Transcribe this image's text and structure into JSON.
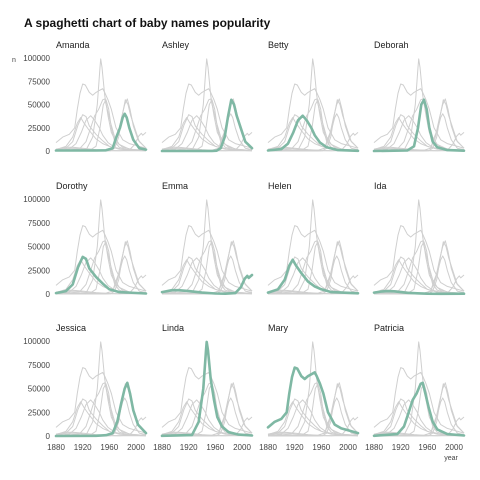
{
  "chart_data": {
    "type": "line",
    "title": "A spaghetti chart of baby names popularity",
    "xlabel": "year",
    "ylabel": "n",
    "xlim": [
      1880,
      2015
    ],
    "ylim": [
      0,
      100000
    ],
    "x_ticks": [
      "1880",
      "1920",
      "1960",
      "2000"
    ],
    "y_ticks": [
      "0",
      "25000",
      "50000",
      "75000",
      "100000"
    ],
    "highlight_color": "#7fb8a4",
    "background_color": "#cfcfcf",
    "series": [
      {
        "name": "Amanda",
        "points": [
          [
            1880,
            500
          ],
          [
            1940,
            500
          ],
          [
            1955,
            800
          ],
          [
            1965,
            3000
          ],
          [
            1970,
            14000
          ],
          [
            1976,
            25000
          ],
          [
            1980,
            36000
          ],
          [
            1983,
            40000
          ],
          [
            1986,
            36000
          ],
          [
            1990,
            25000
          ],
          [
            1996,
            12000
          ],
          [
            2005,
            3000
          ],
          [
            2015,
            1500
          ]
        ]
      },
      {
        "name": "Ashley",
        "points": [
          [
            1880,
            0
          ],
          [
            1955,
            0
          ],
          [
            1962,
            300
          ],
          [
            1968,
            3000
          ],
          [
            1974,
            15000
          ],
          [
            1979,
            37000
          ],
          [
            1984,
            55000
          ],
          [
            1988,
            50000
          ],
          [
            1992,
            38000
          ],
          [
            1998,
            25000
          ],
          [
            2005,
            10000
          ],
          [
            2015,
            3000
          ]
        ]
      },
      {
        "name": "Betty",
        "points": [
          [
            1880,
            500
          ],
          [
            1900,
            2000
          ],
          [
            1910,
            8000
          ],
          [
            1918,
            20000
          ],
          [
            1925,
            33000
          ],
          [
            1932,
            38000
          ],
          [
            1938,
            33000
          ],
          [
            1945,
            25000
          ],
          [
            1950,
            17000
          ],
          [
            1958,
            9000
          ],
          [
            1968,
            4000
          ],
          [
            1985,
            1000
          ],
          [
            2015,
            200
          ]
        ]
      },
      {
        "name": "Deborah",
        "points": [
          [
            1880,
            0
          ],
          [
            1930,
            500
          ],
          [
            1940,
            5000
          ],
          [
            1946,
            25000
          ],
          [
            1951,
            50000
          ],
          [
            1955,
            55000
          ],
          [
            1959,
            45000
          ],
          [
            1963,
            25000
          ],
          [
            1968,
            10000
          ],
          [
            1975,
            4000
          ],
          [
            1990,
            1000
          ],
          [
            2015,
            300
          ]
        ]
      },
      {
        "name": "Dorothy",
        "points": [
          [
            1880,
            1000
          ],
          [
            1895,
            3000
          ],
          [
            1905,
            10000
          ],
          [
            1913,
            28000
          ],
          [
            1920,
            39000
          ],
          [
            1925,
            37000
          ],
          [
            1930,
            27000
          ],
          [
            1940,
            18000
          ],
          [
            1950,
            11000
          ],
          [
            1960,
            5000
          ],
          [
            1975,
            2000
          ],
          [
            2015,
            500
          ]
        ]
      },
      {
        "name": "Emma",
        "points": [
          [
            1880,
            2000
          ],
          [
            1895,
            4000
          ],
          [
            1905,
            4000
          ],
          [
            1920,
            3000
          ],
          [
            1940,
            1500
          ],
          [
            1960,
            500
          ],
          [
            1975,
            300
          ],
          [
            1990,
            1000
          ],
          [
            1998,
            7000
          ],
          [
            2004,
            16000
          ],
          [
            2008,
            19000
          ],
          [
            2010,
            17000
          ],
          [
            2015,
            20000
          ]
        ]
      },
      {
        "name": "Helen",
        "points": [
          [
            1880,
            1500
          ],
          [
            1895,
            5000
          ],
          [
            1905,
            15000
          ],
          [
            1912,
            30000
          ],
          [
            1917,
            36000
          ],
          [
            1922,
            30000
          ],
          [
            1930,
            22000
          ],
          [
            1940,
            13000
          ],
          [
            1950,
            8000
          ],
          [
            1960,
            5000
          ],
          [
            1975,
            2000
          ],
          [
            2015,
            700
          ]
        ]
      },
      {
        "name": "Ida",
        "points": [
          [
            1880,
            1500
          ],
          [
            1890,
            2500
          ],
          [
            1900,
            3000
          ],
          [
            1910,
            2800
          ],
          [
            1920,
            2000
          ],
          [
            1930,
            1300
          ],
          [
            1945,
            700
          ],
          [
            1960,
            300
          ],
          [
            1980,
            200
          ],
          [
            2015,
            300
          ]
        ]
      },
      {
        "name": "Jessica",
        "points": [
          [
            1880,
            0
          ],
          [
            1940,
            200
          ],
          [
            1955,
            800
          ],
          [
            1965,
            3000
          ],
          [
            1972,
            15000
          ],
          [
            1978,
            35000
          ],
          [
            1983,
            50000
          ],
          [
            1987,
            56000
          ],
          [
            1991,
            45000
          ],
          [
            1996,
            27000
          ],
          [
            2003,
            12000
          ],
          [
            2015,
            3000
          ]
        ]
      },
      {
        "name": "Linda",
        "points": [
          [
            1880,
            200
          ],
          [
            1925,
            1000
          ],
          [
            1935,
            15000
          ],
          [
            1942,
            50000
          ],
          [
            1946,
            90000
          ],
          [
            1947,
            99000
          ],
          [
            1949,
            90000
          ],
          [
            1953,
            60000
          ],
          [
            1958,
            38000
          ],
          [
            1963,
            20000
          ],
          [
            1970,
            10000
          ],
          [
            1980,
            4000
          ],
          [
            1995,
            1500
          ],
          [
            2015,
            500
          ]
        ]
      },
      {
        "name": "Mary",
        "points": [
          [
            1880,
            9000
          ],
          [
            1890,
            15000
          ],
          [
            1900,
            18000
          ],
          [
            1908,
            25000
          ],
          [
            1912,
            45000
          ],
          [
            1916,
            62000
          ],
          [
            1920,
            72000
          ],
          [
            1924,
            71000
          ],
          [
            1930,
            63000
          ],
          [
            1935,
            60000
          ],
          [
            1940,
            63000
          ],
          [
            1945,
            65000
          ],
          [
            1950,
            67000
          ],
          [
            1953,
            63000
          ],
          [
            1958,
            55000
          ],
          [
            1963,
            45000
          ],
          [
            1970,
            25000
          ],
          [
            1980,
            12000
          ],
          [
            1990,
            8000
          ],
          [
            2000,
            6000
          ],
          [
            2015,
            3000
          ]
        ]
      },
      {
        "name": "Patricia",
        "points": [
          [
            1880,
            200
          ],
          [
            1915,
            2000
          ],
          [
            1925,
            10000
          ],
          [
            1932,
            25000
          ],
          [
            1938,
            38000
          ],
          [
            1944,
            45000
          ],
          [
            1950,
            55000
          ],
          [
            1953,
            56000
          ],
          [
            1957,
            45000
          ],
          [
            1962,
            30000
          ],
          [
            1968,
            15000
          ],
          [
            1975,
            7000
          ],
          [
            1990,
            2000
          ],
          [
            2015,
            500
          ]
        ]
      }
    ]
  }
}
